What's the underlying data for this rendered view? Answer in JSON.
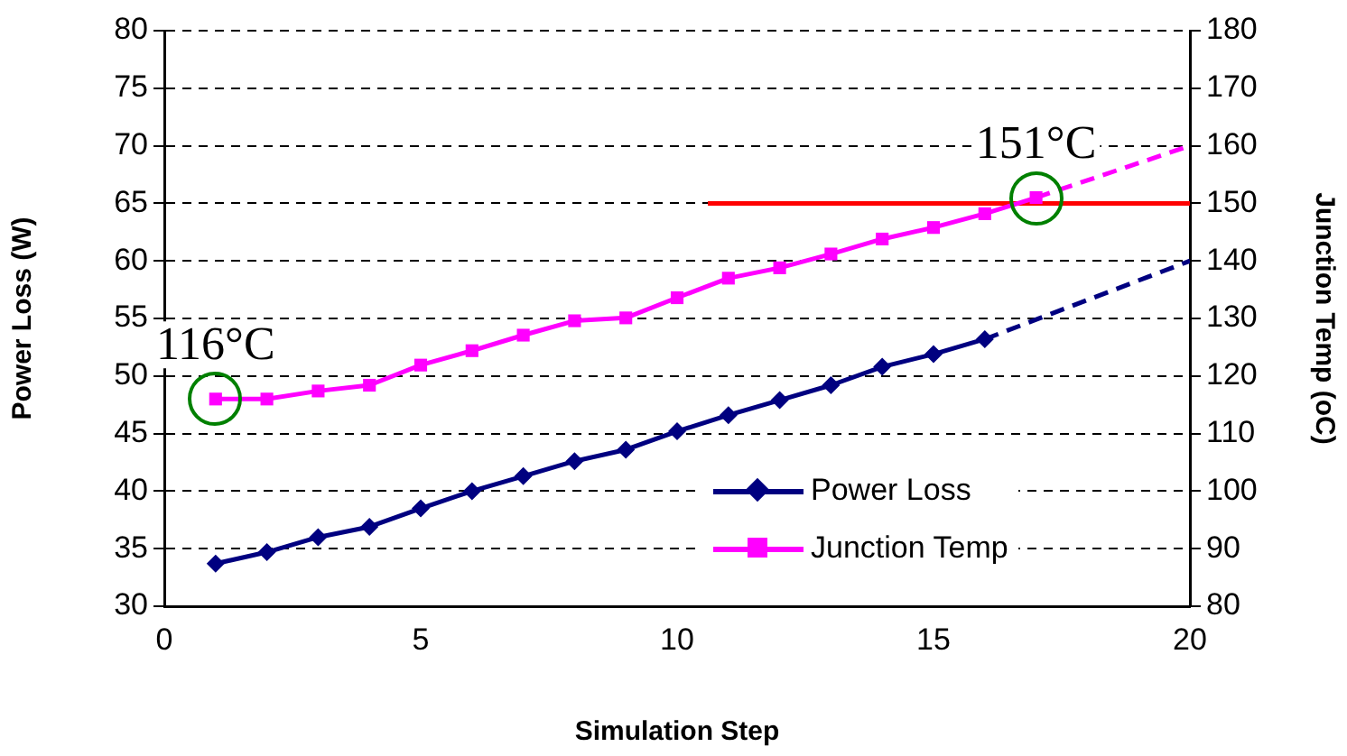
{
  "chart_data": {
    "type": "line",
    "xlabel": "Simulation Step",
    "ylabel": "Power Loss (W)",
    "y2label": "Junction Temp (oC)",
    "xlim": [
      0,
      20
    ],
    "xticks": [
      0,
      5,
      10,
      15,
      20
    ],
    "ylim": [
      30,
      80
    ],
    "yticks": [
      30,
      35,
      40,
      45,
      50,
      55,
      60,
      65,
      70,
      75,
      80
    ],
    "y2lim": [
      80,
      180
    ],
    "y2ticks": [
      80,
      90,
      100,
      110,
      120,
      130,
      140,
      150,
      160,
      170,
      180
    ],
    "grid": "y",
    "legend": "bottom right",
    "line_style": "solid",
    "series": [
      {
        "name": "Power Loss",
        "color": "#000080",
        "marker": "diamond",
        "x": [
          1,
          2,
          3,
          4,
          5,
          6,
          7,
          8,
          9,
          10,
          11,
          12,
          13,
          14,
          15,
          16
        ],
        "values": [
          33.7,
          34.7,
          36.0,
          36.9,
          38.5,
          40.0,
          41.3,
          42.6,
          43.6,
          45.2,
          46.6,
          47.9,
          49.2,
          50.8,
          51.9,
          53.2
        ]
      },
      {
        "name": "Junction Temp",
        "color": "#ff00ff",
        "marker": "square",
        "axis": "y2",
        "x": [
          1,
          2,
          3,
          4,
          5,
          6,
          7,
          8,
          9,
          10,
          11,
          12,
          13,
          14,
          15,
          16,
          17
        ],
        "values": [
          116,
          116,
          117.4,
          118.4,
          121.9,
          124.4,
          127.1,
          129.6,
          130.1,
          133.6,
          137,
          138.8,
          141.2,
          143.8,
          145.8,
          148.2,
          151
        ]
      },
      {
        "color": "#000080",
        "line_style": "dashed",
        "x": [
          16,
          20
        ],
        "values": [
          53.2,
          60
        ]
      },
      {
        "color": "#ff00ff",
        "line_style": "dashed",
        "axis": "y2",
        "x": [
          17,
          20
        ],
        "values": [
          151,
          160
        ]
      },
      {
        "color": "#ff0000",
        "axis": "y2",
        "x": [
          10.6,
          20
        ],
        "values": [
          150,
          150
        ]
      }
    ],
    "annotations": [
      {
        "text": "116°C",
        "x": 1,
        "y": 48
      },
      {
        "text": "151°C",
        "x": 17,
        "y": 65.5
      }
    ]
  }
}
